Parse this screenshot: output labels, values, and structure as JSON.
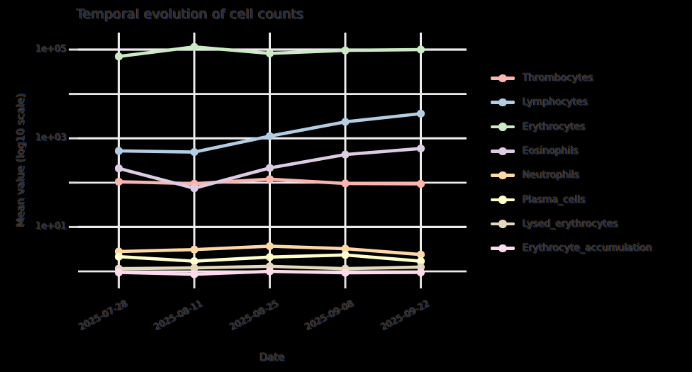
{
  "figure": {
    "background": "#000000"
  },
  "chart_data": {
    "type": "line",
    "title": "Temporal evolution of cell counts",
    "xlabel": "Date",
    "ylabel": "Mean value (log10 scale)",
    "y_scale": "log10",
    "grid": true,
    "legend_position": "right",
    "categories": [
      "2025-07-28",
      "2025-08-11",
      "2025-08-25",
      "2025-09-08",
      "2025-09-22"
    ],
    "y_ticks": [
      {
        "label": "1e+05",
        "value": 100000
      },
      {
        "label": "1e+03",
        "value": 1000
      },
      {
        "label": "1e+01",
        "value": 10
      }
    ],
    "y_gridline_decades": [
      0,
      1,
      2,
      3,
      4,
      5
    ],
    "ylim": [
      0.75,
      240000
    ],
    "series": [
      {
        "name": "Thrombocytes",
        "color": "#FBB4AE",
        "values": [
          105,
          95,
          120,
          96,
          94
        ]
      },
      {
        "name": "Lymphocytes",
        "color": "#B3CDE3",
        "values": [
          520,
          490,
          1120,
          2350,
          3600
        ]
      },
      {
        "name": "Erythrocytes",
        "color": "#CCEBC5",
        "values": [
          70000,
          115000,
          82000,
          96000,
          100000
        ]
      },
      {
        "name": "Eosinophils",
        "color": "#DECBE4",
        "values": [
          210,
          75,
          215,
          430,
          590
        ]
      },
      {
        "name": "Neutrophils",
        "color": "#FED9A6",
        "values": [
          2.8,
          3.1,
          3.7,
          3.25,
          2.4
        ]
      },
      {
        "name": "Plasma_cells",
        "color": "#FFFFCC",
        "values": [
          2.15,
          1.7,
          2.1,
          2.35,
          1.7
        ]
      },
      {
        "name": "Lysed_erythrocytes",
        "color": "#E5D8BD",
        "values": [
          1.15,
          1.2,
          1.3,
          1.15,
          1.25
        ]
      },
      {
        "name": "Erythrocyte_accumulation",
        "color": "#FDDAEC",
        "values": [
          0.95,
          0.86,
          1.0,
          0.93,
          0.95
        ]
      }
    ],
    "colors": {
      "background": "#000000",
      "gridline": "#ececec",
      "tick": "#dcdcdc",
      "text": "#232b38"
    }
  }
}
